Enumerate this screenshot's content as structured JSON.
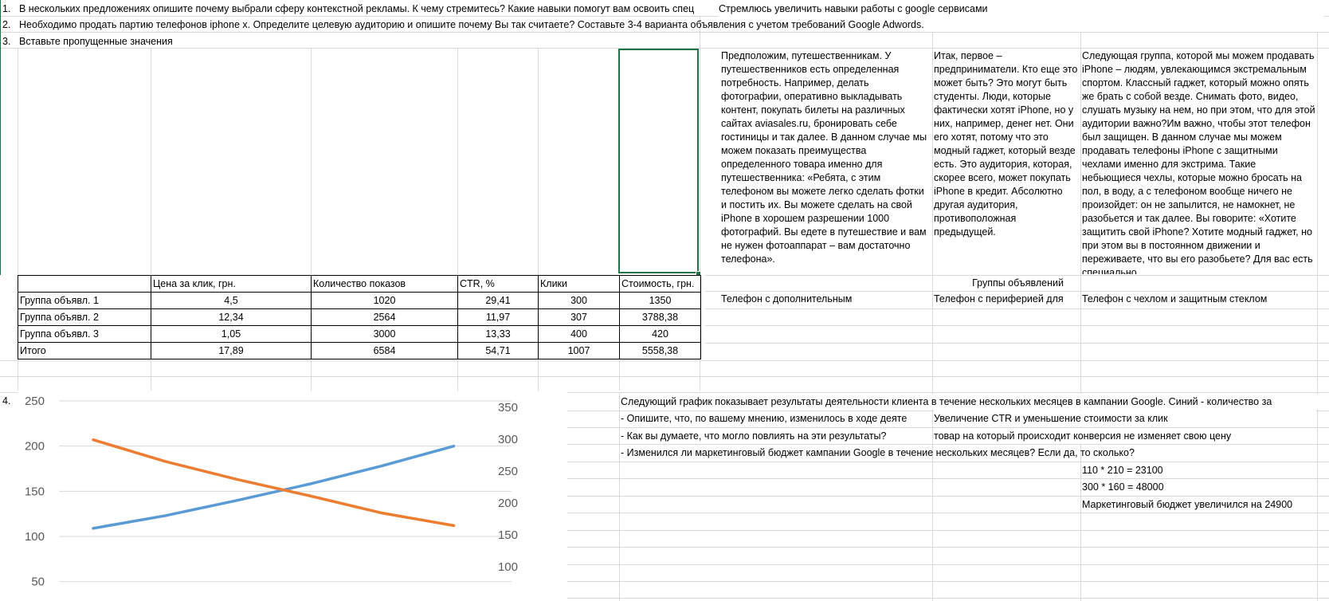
{
  "rows": {
    "r1_num": "1.",
    "r1_question": "В нескольких предложениях опишите почему выбрали сферу контекстной рекламы. К чему стремитесь? Какие навыки помогут вам  освоить спец",
    "r1_answer": "Стремлюсь увеличить навыки работы с google сервисами",
    "r2_num": "2.",
    "r2_question": "Необходимо продать партию телефонов iphone x. Определите целевую аудиторию и опишите почему Вы так считаете? Составьте 3-4 варианта объявления с учетом требований Google Adwords.",
    "r3_num": "3.",
    "r3_question": "Вставьте пропущенные значения",
    "r4_num": "4."
  },
  "audiences": {
    "col1": "Предположим, путешественникам. У путешественников есть определенная потребность. Например, делать фотографии, оперативно выкладывать контент, покупать билеты на различных сайтах aviasales.ru, бронировать себе гостиницы и так далее. В данном случае мы можем показать преимущества определенного товара именно для путешественника: «Ребята, с этим телефоном вы можете легко сделать фотки и постить их. Вы можете сделать на свой iPhone в хорошем разрешении 1000 фотографий. Вы едете в путешествие и вам не нужен фотоаппарат – вам достаточно телефона».",
    "col2": "Итак, первое – предприниматели. Кто еще это может быть? Это могут быть студенты. Люди, которые фактически хотят iPhone, но у них, например, денег нет. Они его хотят, потому что это модный гаджет, который везде есть. Это аудитория, которая, скорее всего, может покупать iPhone в кредит. Абсолютно другая аудитория, противоположная предыдущей.",
    "col3": "Следующая группа, которой мы можем продавать iPhone – людям, увлекающимся экстремальным спортом. Классный гаджет, который можно опять же брать с собой везде. Снимать фото, видео, слушать музыку на нем, но при этом, что для этой аудитории важно?Им важно, чтобы этот телефон был защищен. В данном случае мы можем продавать телефоны iPhone с защитными чехлами именно для экстрима. Такие небьющиеся чехлы, которые можно бросать на пол, в воду, а с телефоном вообще ничего не произойдет: он не запылится, не намокнет, не разобьется и так далее. Вы говорите: «Хотите защитить свой iPhone? Хотите модный гаджет, но при этом вы в постоянном движении и переживаете, что вы его разобьете? Для вас есть специально"
  },
  "ad_groups": {
    "header": "Группы объявлений",
    "g1": "Телефон с дополнительным",
    "g2": "Телефон с периферией для",
    "g3": "Телефон с чехлом и защитным стеклом"
  },
  "table": {
    "headers": [
      "",
      "Цена за клик, грн.",
      "Количество показов",
      "CTR, %",
      "Клики",
      "Стоимость, грн."
    ],
    "rows": [
      [
        "Группа объявл. 1",
        "4,5",
        "1020",
        "29,41",
        "300",
        "1350"
      ],
      [
        "Группа объявл. 2",
        "12,34",
        "2564",
        "11,97",
        "307",
        "3788,38"
      ],
      [
        "Группа объявл. 3",
        "1,05",
        "3000",
        "13,33",
        "400",
        "420"
      ],
      [
        "Итого",
        "17,89",
        "6584",
        "54,71",
        "1007",
        "5558,38"
      ]
    ]
  },
  "task4": {
    "intro": "Следующий график показывает результаты деятельности клиента в течение нескольких месяцев в кампании Google. Синий - количество за",
    "q1": "- Опишите, что, по вашему мнению, изменилось в ходе деяте",
    "a1": "Увеличение CTR и уменьшение стоимости за клик",
    "q2": "- Как вы думаете, что могло повлиять на эти результаты?",
    "a2": "товар на который происходит конверсия не изменяет свою цену",
    "q3": "- Изменился ли маркетинговый бюджет кампании Google в течение нескольких месяцев? Если да, то сколько?",
    "calc1": "110 * 210 = 23100",
    "calc2": "300 * 160 = 48000",
    "result": "Маркетинговый бюджет увеличился на 24900"
  },
  "chart_data": {
    "type": "line",
    "left_axis": {
      "ticks": [
        "250",
        "200",
        "150",
        "100",
        "50"
      ],
      "ylim": [
        50,
        250
      ]
    },
    "right_axis": {
      "ticks": [
        "350",
        "300",
        "250",
        "200",
        "150",
        "100"
      ],
      "ylim": [
        100,
        350
      ]
    },
    "series": [
      {
        "axis": "left",
        "color": "#5B9BD5",
        "x": [
          0,
          1,
          2,
          3,
          4,
          5
        ],
        "values": [
          109,
          123,
          140,
          158,
          178,
          200
        ]
      },
      {
        "axis": "left",
        "color": "#ED7D31",
        "x": [
          0,
          1,
          2,
          3,
          4,
          5
        ],
        "values": [
          207,
          183,
          163,
          145,
          126,
          112
        ]
      }
    ],
    "grid": true
  }
}
